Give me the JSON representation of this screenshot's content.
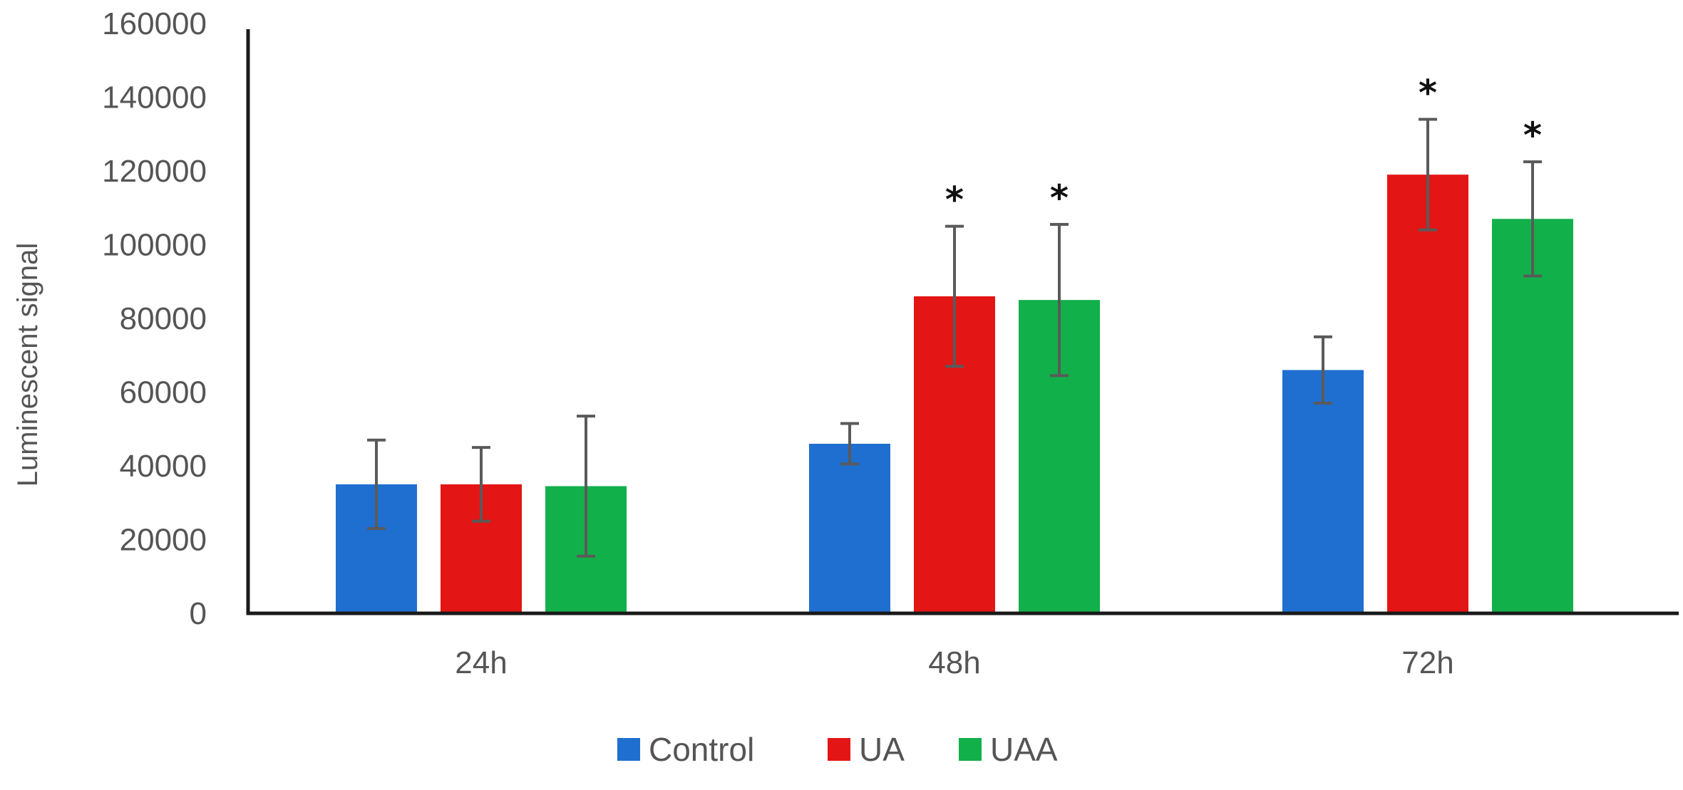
{
  "chart_data": {
    "type": "bar",
    "title": "",
    "xlabel": "",
    "ylabel": "Luminescent signal",
    "ylim": [
      0,
      160000
    ],
    "yticks": [
      0,
      20000,
      40000,
      60000,
      80000,
      100000,
      120000,
      140000,
      160000
    ],
    "ytick_labels": [
      "0",
      "20000",
      "40000",
      "60000",
      "80000",
      "100000",
      "120000",
      "140000",
      "160000"
    ],
    "categories": [
      "24h",
      "48h",
      "72h"
    ],
    "grid": false,
    "legend_position": "bottom",
    "series": [
      {
        "name": "Control",
        "color": "#1f6fd0",
        "values": [
          35000,
          46000,
          66000
        ],
        "errors": [
          12000,
          5500,
          9000
        ],
        "significant": [
          false,
          false,
          false
        ]
      },
      {
        "name": "UA",
        "color": "#e41515",
        "values": [
          35000,
          86000,
          119000
        ],
        "errors": [
          10000,
          19000,
          15000
        ],
        "significant": [
          false,
          true,
          true
        ]
      },
      {
        "name": "UAA",
        "color": "#12b04a",
        "values": [
          34500,
          85000,
          107000
        ],
        "errors": [
          19000,
          20500,
          15500
        ],
        "significant": [
          false,
          true,
          true
        ]
      }
    ],
    "significance_marker": "*"
  }
}
